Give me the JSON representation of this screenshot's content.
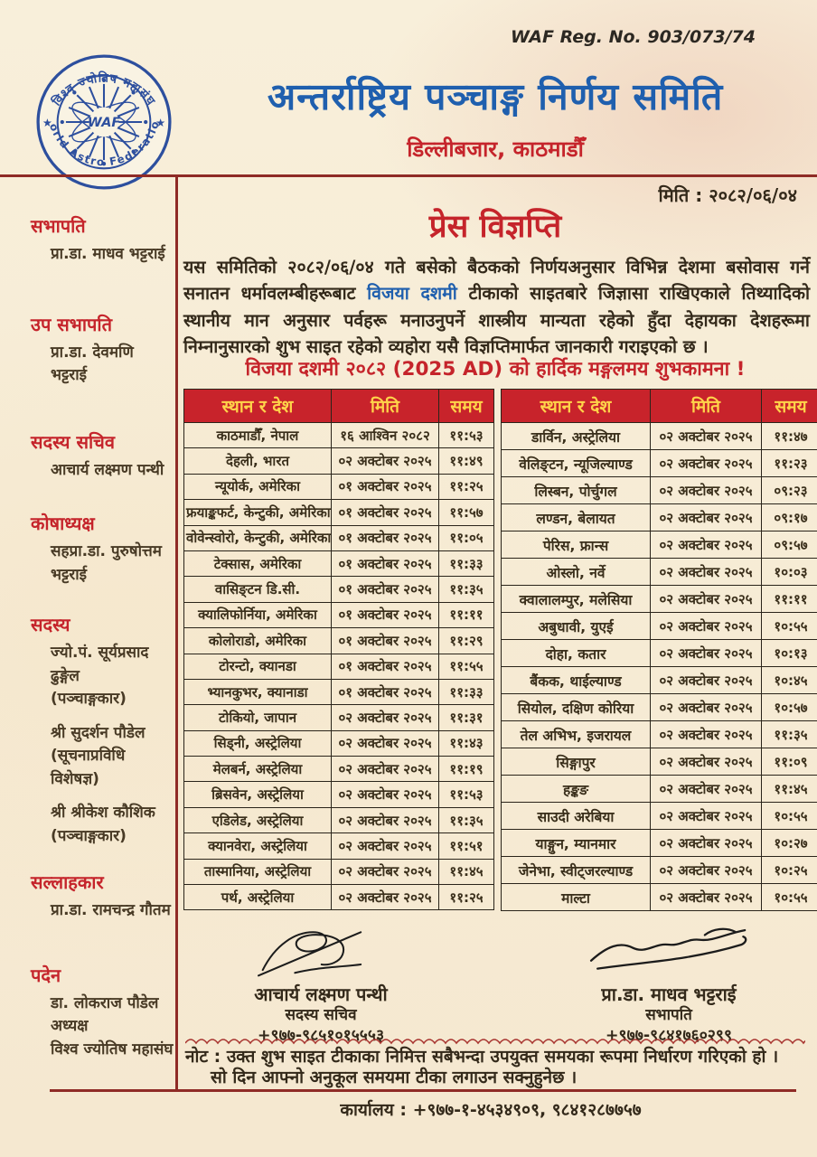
{
  "header": {
    "reg_no": "WAF Reg. No. 903/073/74",
    "org_name": "अन्तर्राष्ट्रिय पञ्चाङ्ग निर्णय समिति",
    "address": "डिल्लीबजार, काठमाडौँ",
    "logo": {
      "center": "WAF",
      "arc_top": "विश्व ज्योतिष महासंघ",
      "arc_bottom": "World Astro Federation"
    },
    "date_line": "मिति : २०८२/०६/०४"
  },
  "press_release": {
    "title": "प्रेस विज्ञप्ति",
    "body_before": "यस समितिको २०८२/०६/०४ गते बसेको बैठकको निर्णयअनुसार विभिन्न देशमा बसोवास गर्ने सनातन धर्मावलम्बीहरूबाट ",
    "body_highlight": "विजया दशमी",
    "body_after": " टीकाको साइतबारे जिज्ञासा राखिएकाले तिथ्यादिको स्थानीय मान अनुसार पर्वहरू मनाउनुपर्ने शास्त्रीय मान्यता रहेको हुँदा देहायका देशहरूमा निम्नानुसारको शुभ साइत रहेको व्यहोरा यसै विज्ञप्तिमार्फत जानकारी गराइएको छ ।",
    "banner": "विजया दशमी २०८२ (2025 AD) को हार्दिक मङ्गलमय शुभकामना !"
  },
  "sidebar": {
    "sections": [
      {
        "title": "सभापति",
        "entries": [
          [
            "प्रा.डा. माधव भट्टराई"
          ]
        ]
      },
      {
        "title": "उप सभापति",
        "entries": [
          [
            "प्रा.डा. देवमणि भट्टराई"
          ]
        ]
      },
      {
        "title": "सदस्य सचिव",
        "entries": [
          [
            "आचार्य लक्ष्मण पन्थी"
          ]
        ]
      },
      {
        "title": "कोषाध्यक्ष",
        "entries": [
          [
            "सहप्रा.डा. पुरुषोत्तम भट्टराई"
          ]
        ]
      },
      {
        "title": "सदस्य",
        "entries": [
          [
            "ज्यो.पं. सूर्यप्रसाद ढुङ्गेल",
            "(पञ्चाङ्गकार)"
          ],
          [
            "श्री सुदर्शन पौडेल",
            "(सूचनाप्रविधि विशेषज्ञ)"
          ],
          [
            "श्री श्रीकेश कौशिक",
            "(पञ्चाङ्गकार)"
          ]
        ]
      },
      {
        "title": "सल्लाहकार",
        "entries": [
          [
            "प्रा.डा. रामचन्द्र गौतम"
          ]
        ]
      },
      {
        "title": "पदेन",
        "entries": [
          [
            "डा. लोकराज पौडेल",
            "अध्यक्ष",
            "विश्व ज्योतिष महासंघ"
          ]
        ]
      }
    ]
  },
  "tables": {
    "columns": [
      "स्थान र देश",
      "मिति",
      "समय"
    ],
    "left_rows": [
      {
        "place": "काठमाडौँ, नेपाल",
        "date": "१६ आश्विन २०८२",
        "time": "११:५३"
      },
      {
        "place": "देहली, भारत",
        "date": "०२ अक्टोबर २०२५",
        "time": "११:४९"
      },
      {
        "place": "न्यूयोर्क, अमेरिका",
        "date": "०१ अक्टोबर २०२५",
        "time": "११:२५"
      },
      {
        "place": "फ्रयाङ्कफर्ट, केन्टुकी, अमेरिका",
        "date": "०१ अक्टोबर २०२५",
        "time": "११:५७"
      },
      {
        "place": "वोवेन्स्वोरो, केन्टुकी, अमेरिका",
        "date": "०१ अक्टोबर २०२५",
        "time": "११:०५"
      },
      {
        "place": "टेक्सास, अमेरिका",
        "date": "०१ अक्टोबर २०२५",
        "time": "११:३३"
      },
      {
        "place": "वासिङ्टन डि.सी.",
        "date": "०१ अक्टोबर २०२५",
        "time": "११:३५"
      },
      {
        "place": "क्यालिफोर्निया, अमेरिका",
        "date": "०१ अक्टोबर २०२५",
        "time": "११:११"
      },
      {
        "place": "कोलोराडो, अमेरिका",
        "date": "०१ अक्टोबर २०२५",
        "time": "११:२९"
      },
      {
        "place": "टोरन्टो, क्यानडा",
        "date": "०१ अक्टोबर २०२५",
        "time": "११:५५"
      },
      {
        "place": "भ्यानकुभर, क्यानाडा",
        "date": "०१ अक्टोबर २०२५",
        "time": "११:३३"
      },
      {
        "place": "टोकियो, जापान",
        "date": "०२ अक्टोबर २०२५",
        "time": "११:३१"
      },
      {
        "place": "सिड्नी, अस्ट्रेलिया",
        "date": "०२ अक्टोबर २०२५",
        "time": "११:४३"
      },
      {
        "place": "मेलबर्न, अस्ट्रेलिया",
        "date": "०२ अक्टोबर २०२५",
        "time": "११:१९"
      },
      {
        "place": "ब्रिसवेन, अस्ट्रेलिया",
        "date": "०२ अक्टोबर २०२५",
        "time": "११:५३"
      },
      {
        "place": "एडिलेड, अस्ट्रेलिया",
        "date": "०२ अक्टोबर २०२५",
        "time": "११:३५"
      },
      {
        "place": "क्यानवेरा, अस्ट्रेलिया",
        "date": "०२ अक्टोबर २०२५",
        "time": "११:५१"
      },
      {
        "place": "तास्मानिया, अस्ट्रेलिया",
        "date": "०२ अक्टोबर २०२५",
        "time": "११:४५"
      },
      {
        "place": "पर्थ, अस्ट्रेलिया",
        "date": "०२ अक्टोबर २०२५",
        "time": "११:२५"
      }
    ],
    "right_rows": [
      {
        "place": "डार्विन, अस्ट्रेलिया",
        "date": "०२ अक्टोबर २०२५",
        "time": "११:४७"
      },
      {
        "place": "वेलिङ्टन, न्यूजिल्याण्ड",
        "date": "०२ अक्टोबर २०२५",
        "time": "११:२३"
      },
      {
        "place": "लिस्बन, पोर्चुगल",
        "date": "०२ अक्टोबर २०२५",
        "time": "०९:२३"
      },
      {
        "place": "लण्डन, बेलायत",
        "date": "०२ अक्टोबर २०२५",
        "time": "०९:१७"
      },
      {
        "place": "पेरिस, फ्रान्स",
        "date": "०२ अक्टोबर २०२५",
        "time": "०९:५७"
      },
      {
        "place": "ओस्लो, नर्वे",
        "date": "०२ अक्टोबर २०२५",
        "time": "१०:०३"
      },
      {
        "place": "क्वालालम्पुर, मलेसिया",
        "date": "०२ अक्टोबर २०२५",
        "time": "११:११"
      },
      {
        "place": "अबुधावी, युएई",
        "date": "०२ अक्टोबर २०२५",
        "time": "१०:५५"
      },
      {
        "place": "दोहा, कतार",
        "date": "०२ अक्टोबर २०२५",
        "time": "१०:१३"
      },
      {
        "place": "बैंकक, थाईल्याण्ड",
        "date": "०२ अक्टोबर २०२५",
        "time": "१०:४५"
      },
      {
        "place": "सियोल, दक्षिण कोरिया",
        "date": "०२ अक्टोबर २०२५",
        "time": "१०:५७"
      },
      {
        "place": "तेल अभिभ, इजरायल",
        "date": "०२ अक्टोबर २०२५",
        "time": "११:३५"
      },
      {
        "place": "सिङ्गापुर",
        "date": "०२ अक्टोबर २०२५",
        "time": "११:०९"
      },
      {
        "place": "हङ्कङ",
        "date": "०२ अक्टोबर २०२५",
        "time": "११:४५"
      },
      {
        "place": "साउदी अरेबिया",
        "date": "०२ अक्टोबर २०२५",
        "time": "१०:५५"
      },
      {
        "place": "याङ्गुन, म्यानमार",
        "date": "०२ अक्टोबर २०२५",
        "time": "१०:२७"
      },
      {
        "place": "जेनेभा, स्वीट्जरल्याण्ड",
        "date": "०२ अक्टोबर २०२५",
        "time": "१०:२५"
      },
      {
        "place": "माल्टा",
        "date": "०२ अक्टोबर २०२५",
        "time": "१०:५५"
      }
    ]
  },
  "signatures": {
    "left": {
      "name": "आचार्य लक्ष्मण पन्थी",
      "role": "सदस्य सचिव",
      "phone": "+९७७-९८५१०१५५५३"
    },
    "right": {
      "name": "प्रा.डा. माधव भट्टराई",
      "role": "सभापति",
      "phone": "+९७७-९८४१७६०२९९"
    }
  },
  "footer": {
    "note_line1": "नोट : उक्त शुभ साइत टीकाका निमित्त सबैभन्दा उपयुक्त समयका रूपमा निर्धारण गरिएको हो ।",
    "note_line2": "सो दिन आफ्नो अनुकूल समयमा टीका लगाउन सक्नुहुनेछ ।",
    "office": "कार्यालय : +९७७-१-४५३४९०९, ९८४१२८७७५७"
  },
  "colors": {
    "accent_red": "#c5242b",
    "title_blue": "#1f5fae",
    "logo_blue": "#2d4f9e",
    "table_header_bg": "#c8232b",
    "table_header_text": "#ffd44a",
    "rule_maroon": "#8f2b26",
    "background_cream": "#f8efda"
  }
}
